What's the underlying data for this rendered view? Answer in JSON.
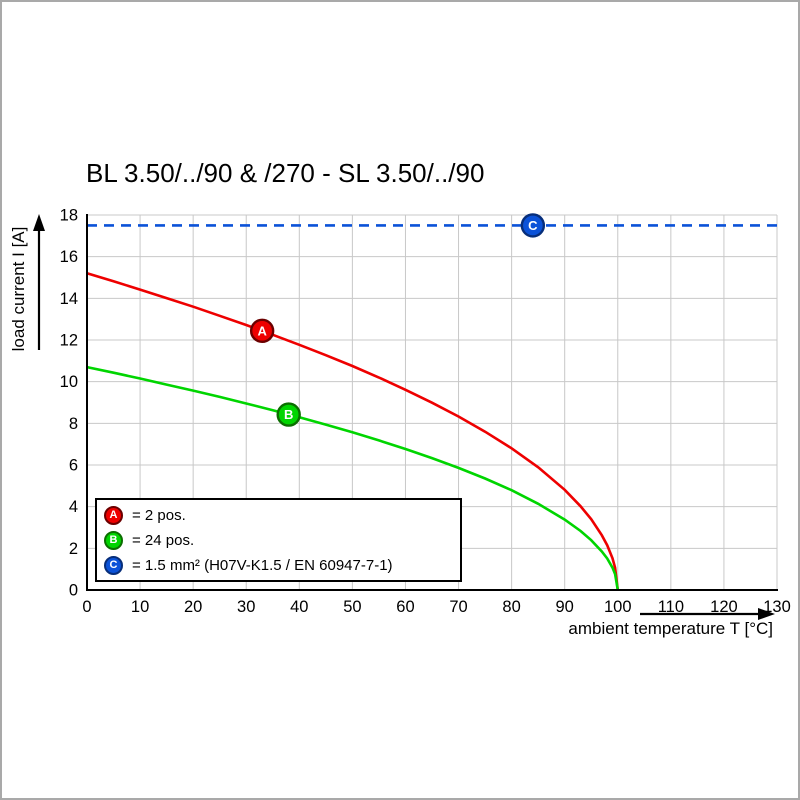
{
  "title": "BL 3.50/../90 & /270 - SL 3.50/../90",
  "chart_data": {
    "type": "line",
    "title": "BL 3.50/../90 & /270 - SL 3.50/../90",
    "xlabel": "ambient temperature T [°C]",
    "ylabel": "load current I [A]",
    "xlim": [
      0,
      130
    ],
    "ylim": [
      0,
      18
    ],
    "xticks": [
      0,
      10,
      20,
      30,
      40,
      50,
      60,
      70,
      80,
      90,
      100,
      110,
      120,
      130
    ],
    "yticks": [
      0,
      2,
      4,
      6,
      8,
      10,
      12,
      14,
      16,
      18
    ],
    "grid": true,
    "grid_color": "#c8c8c8",
    "axis_color": "#000000",
    "legend_position": "lower-left",
    "series": [
      {
        "name": "A",
        "legend": "= 2 pos.",
        "color": "#ee0000",
        "edge": "#6b0000",
        "dash": false,
        "marker": {
          "x": 33,
          "y": 12.44
        },
        "points": [
          [
            0,
            15.2
          ],
          [
            5,
            14.82
          ],
          [
            10,
            14.42
          ],
          [
            15,
            14.01
          ],
          [
            20,
            13.6
          ],
          [
            25,
            13.16
          ],
          [
            30,
            12.72
          ],
          [
            35,
            12.25
          ],
          [
            40,
            11.77
          ],
          [
            45,
            11.27
          ],
          [
            50,
            10.75
          ],
          [
            55,
            10.2
          ],
          [
            60,
            9.61
          ],
          [
            65,
            8.99
          ],
          [
            70,
            8.33
          ],
          [
            75,
            7.6
          ],
          [
            80,
            6.8
          ],
          [
            85,
            5.89
          ],
          [
            90,
            4.81
          ],
          [
            93,
            4.02
          ],
          [
            95,
            3.4
          ],
          [
            97,
            2.63
          ],
          [
            98,
            2.15
          ],
          [
            99,
            1.52
          ],
          [
            99.5,
            1.07
          ],
          [
            100,
            0
          ]
        ]
      },
      {
        "name": "B",
        "legend": "= 24 pos.",
        "color": "#00d500",
        "edge": "#0b6e00",
        "dash": false,
        "marker": {
          "x": 38,
          "y": 8.42
        },
        "points": [
          [
            0,
            10.7
          ],
          [
            5,
            10.43
          ],
          [
            10,
            10.15
          ],
          [
            15,
            9.86
          ],
          [
            20,
            9.57
          ],
          [
            25,
            9.27
          ],
          [
            30,
            8.95
          ],
          [
            35,
            8.63
          ],
          [
            40,
            8.29
          ],
          [
            45,
            7.94
          ],
          [
            50,
            7.57
          ],
          [
            55,
            7.18
          ],
          [
            60,
            6.77
          ],
          [
            65,
            6.33
          ],
          [
            70,
            5.86
          ],
          [
            75,
            5.35
          ],
          [
            80,
            4.79
          ],
          [
            85,
            4.14
          ],
          [
            90,
            3.38
          ],
          [
            93,
            2.83
          ],
          [
            95,
            2.39
          ],
          [
            97,
            1.85
          ],
          [
            98,
            1.51
          ],
          [
            99,
            1.07
          ],
          [
            99.5,
            0.76
          ],
          [
            100,
            0
          ]
        ]
      },
      {
        "name": "C",
        "legend": "= 1.5 mm² (H07V-K1.5 / EN 60947-7-1)",
        "color": "#0b52d8",
        "edge": "#072e7a",
        "dash": true,
        "marker": {
          "x": 84,
          "y": 17.5
        },
        "points": [
          [
            0,
            17.5
          ],
          [
            130,
            17.5
          ]
        ]
      }
    ]
  }
}
